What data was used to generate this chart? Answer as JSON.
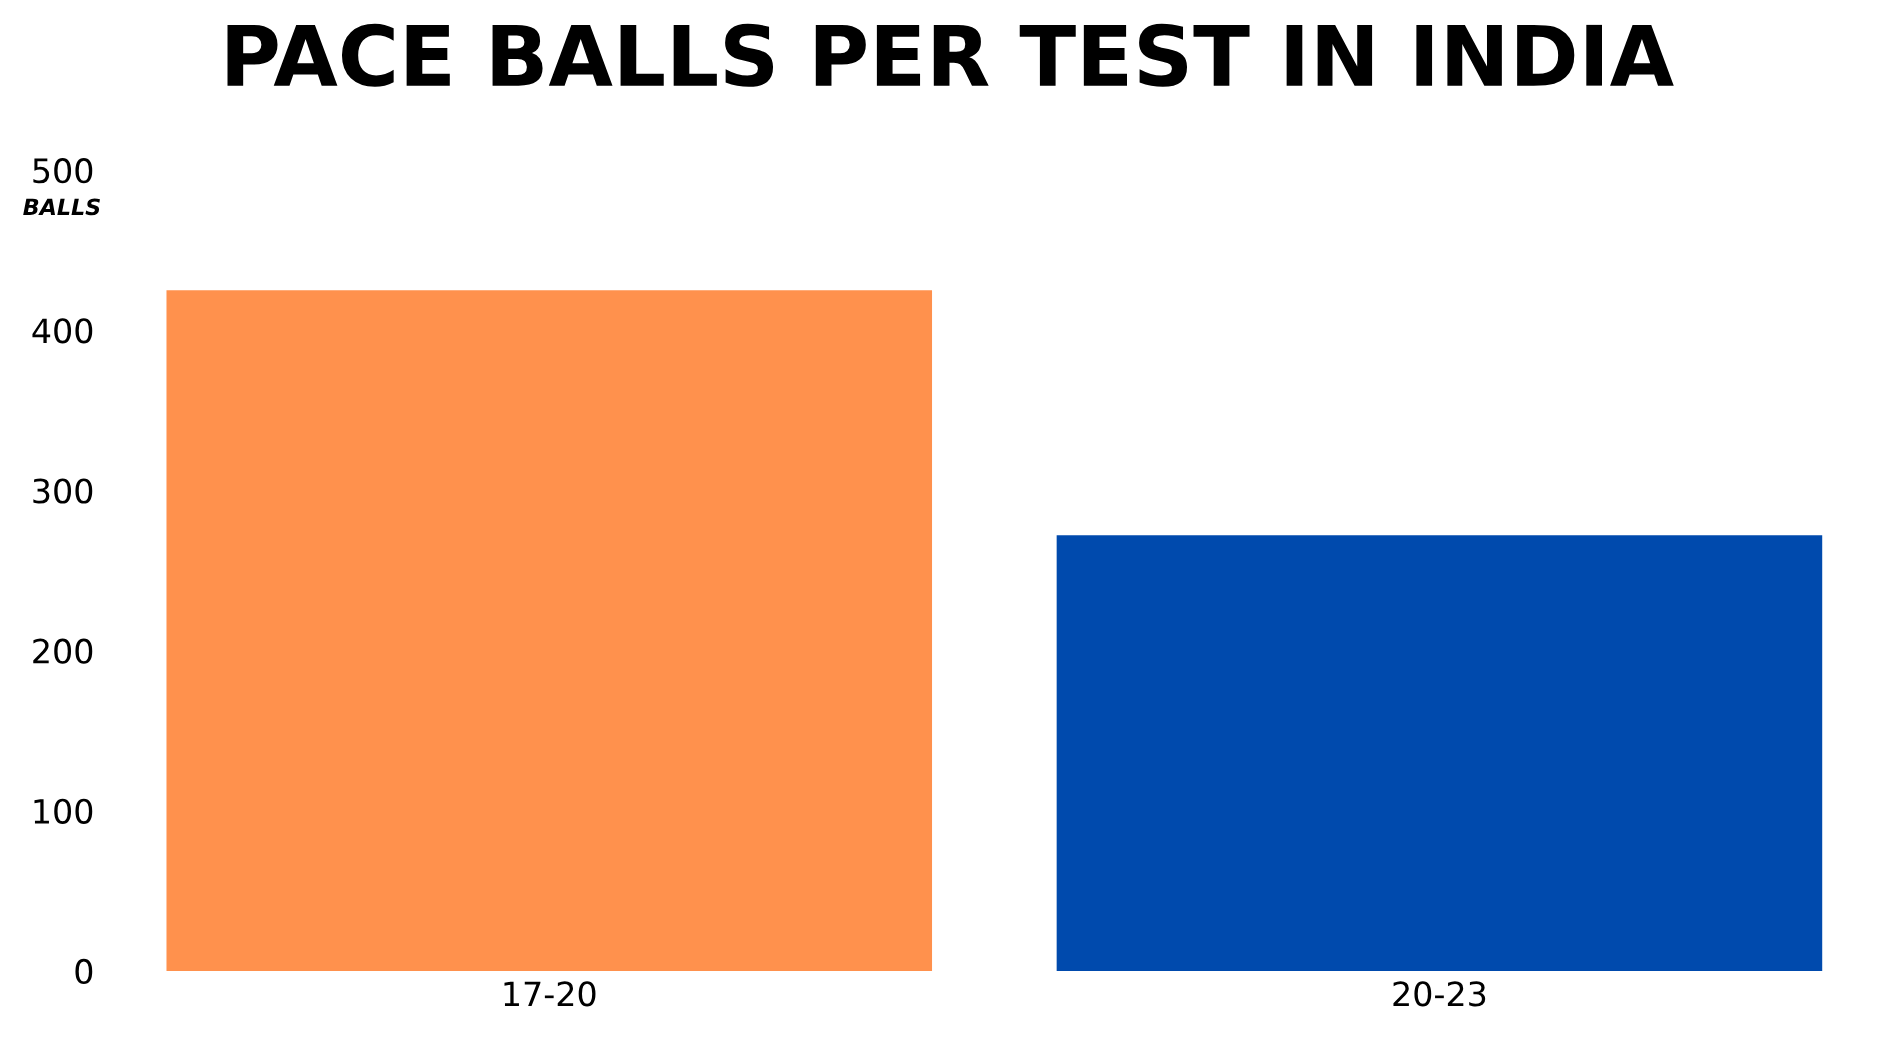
{
  "chart_data": {
    "type": "bar",
    "title": "PACE BALLS PER TEST IN INDIA",
    "ylabel": "BALLS",
    "categories": [
      "17-20",
      "20-23"
    ],
    "values": [
      425,
      272
    ],
    "colors": [
      "#ff914d",
      "#004aad"
    ],
    "ylim": [
      0,
      500
    ],
    "yticks": [
      0,
      100,
      200,
      300,
      400,
      500
    ],
    "grid": false,
    "legend": false
  }
}
